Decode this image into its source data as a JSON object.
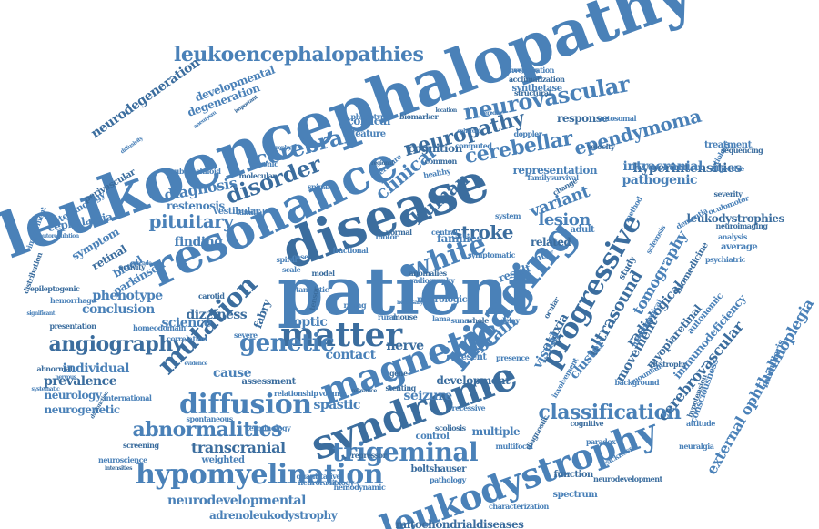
{
  "colors": {
    "primary": "#4a81b8",
    "secondary": "#3b6d9e",
    "background": "#ffffff"
  },
  "words": [
    "leukoencephalopathy",
    "patient",
    "disease",
    "resonance",
    "magnetic",
    "syndrome",
    "imaging",
    "leukodystrophy",
    "matter",
    "hypomyelination",
    "white",
    "progressive",
    "diffusion",
    "trigeminal",
    "neuropathy",
    "neurovascular",
    "leukoencephalopathies",
    "mutation",
    "genetic",
    "abnormalities",
    "angiography",
    "classification",
    "cerebral",
    "disorder",
    "cerebellar",
    "ependymoma",
    "stroke",
    "pituitary",
    "clinical",
    "human",
    "lesion",
    "variant",
    "ultrasound",
    "brain",
    "diagnosis",
    "transcranial",
    "conclusion",
    "phenotype",
    "radiological",
    "tomography",
    "neurodevelopmental",
    "hyperintensities",
    "external ophthalmoplegia",
    "adrenoleukodystrophy",
    "mitochondrialdiseases",
    "finding",
    "science",
    "neurodegeneration",
    "developmental",
    "degeneration",
    "cerebrovascular",
    "pathogenic",
    "intracranial",
    "leukodystrophies",
    "cephalalgia",
    "restenosis",
    "ataxia",
    "visual",
    "cluster",
    "movement",
    "spastic",
    "seizure",
    "nerve",
    "contact",
    "optic",
    "fabry",
    "cause",
    "individual",
    "prevalence",
    "neurology",
    "neurogenetic",
    "dizziness",
    "blood",
    "parkinson",
    "retinal",
    "symptom",
    "technology",
    "perivascular",
    "subarachnoid",
    "vestibular",
    "cognition",
    "cortical",
    "feature",
    "response",
    "treatment",
    "synthetase",
    "acclimatization",
    "investigation",
    "representation",
    "development",
    "multiple",
    "control",
    "function",
    "spectrum",
    "characterization",
    "neurodevelopment",
    "neuroradiology",
    "hemodynamic",
    "boltshauser",
    "pathology",
    "weighted",
    "screening",
    "spontaneous",
    "radiography",
    "assessment",
    "relationship",
    "volume",
    "stenting",
    "present",
    "families",
    "related",
    "result",
    "adult",
    "study",
    "average",
    "analysis",
    "neuroimaging",
    "psychiatric",
    "medullaris",
    "myopiaretinal",
    "immunodeficiency",
    "autonomic",
    "biomedicine",
    "sclerosis",
    "dementia",
    "severity",
    "oculomotor",
    "neurological",
    "anomalies",
    "case",
    "scale",
    "model",
    "rating",
    "rural",
    "mouse",
    "lama",
    "suna",
    "whole",
    "delay",
    "entry",
    "velocity",
    "doppler",
    "autosomal",
    "structural",
    "sonography",
    "phenotypic",
    "biomarker",
    "computed",
    "literature",
    "common",
    "healthy",
    "system",
    "change",
    "method",
    "aetiology",
    "sequencing",
    "objective",
    "consciousness",
    "hypotension",
    "morphological",
    "background",
    "dystrophy",
    "mountain",
    "involvement",
    "cognitive",
    "multifocal",
    "recessive",
    "scoliosis",
    "paradox",
    "sickness",
    "diagnostic",
    "attitude",
    "neuralgia",
    "distribution",
    "impairment",
    "autoregulation",
    "epileptogenic",
    "hemorrhage",
    "significant",
    "presentation",
    "homeodomain",
    "correlation",
    "abnormal",
    "nervous",
    "systematic",
    "dysfunction",
    "international",
    "neuroscience",
    "intensities",
    "terminology",
    "quantitative",
    "repressor",
    "fractional",
    "tanycytic",
    "tensor",
    "spiral",
    "spinal",
    "normal",
    "central",
    "motor",
    "carotid",
    "severe",
    "evidence",
    "activity",
    "saccade",
    "familial",
    "molecular",
    "chronic",
    "atrophy",
    "regional",
    "spheroid",
    "heredity",
    "location",
    "diffusivity",
    "aneurysm",
    "important",
    "necessary",
    "symptomatic",
    "gene",
    "family",
    "survival",
    "relevance",
    "presence",
    "nerve",
    "ocular",
    "review",
    "similar"
  ]
}
